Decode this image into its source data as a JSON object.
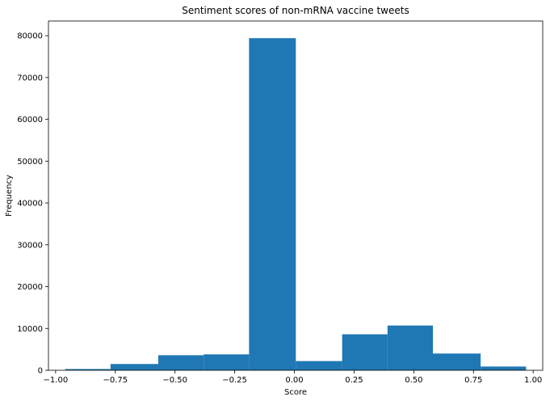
{
  "chart_data": {
    "type": "bar",
    "title": "Sentiment scores of non-mRNA vaccine tweets",
    "xlabel": "Score",
    "ylabel": "Frequency",
    "xlim": [
      -1.03,
      1.04
    ],
    "ylim": [
      0,
      83500
    ],
    "x_ticks": [
      -1.0,
      -0.75,
      -0.5,
      -0.25,
      0.0,
      0.25,
      0.5,
      0.75,
      1.0
    ],
    "x_tick_labels": [
      "−1.00",
      "−0.75",
      "−0.50",
      "−0.25",
      "0.00",
      "0.25",
      "0.50",
      "0.75",
      "1.00"
    ],
    "y_ticks": [
      0,
      10000,
      20000,
      30000,
      40000,
      50000,
      60000,
      70000,
      80000
    ],
    "y_tick_labels": [
      "0",
      "10000",
      "20000",
      "30000",
      "40000",
      "50000",
      "60000",
      "70000",
      "80000"
    ],
    "bins": [
      {
        "x0": -0.96,
        "x1": -0.77,
        "value": 300
      },
      {
        "x0": -0.77,
        "x1": -0.57,
        "value": 1500
      },
      {
        "x0": -0.57,
        "x1": -0.38,
        "value": 3600
      },
      {
        "x0": -0.38,
        "x1": -0.19,
        "value": 3800
      },
      {
        "x0": -0.19,
        "x1": 0.006,
        "value": 79400
      },
      {
        "x0": 0.006,
        "x1": 0.2,
        "value": 2200
      },
      {
        "x0": 0.2,
        "x1": 0.39,
        "value": 8600
      },
      {
        "x0": 0.39,
        "x1": 0.58,
        "value": 10700
      },
      {
        "x0": 0.58,
        "x1": 0.78,
        "value": 4000
      },
      {
        "x0": 0.78,
        "x1": 0.97,
        "value": 900
      }
    ],
    "bar_color": "#1f77b4",
    "grid": false,
    "legend": "none"
  }
}
